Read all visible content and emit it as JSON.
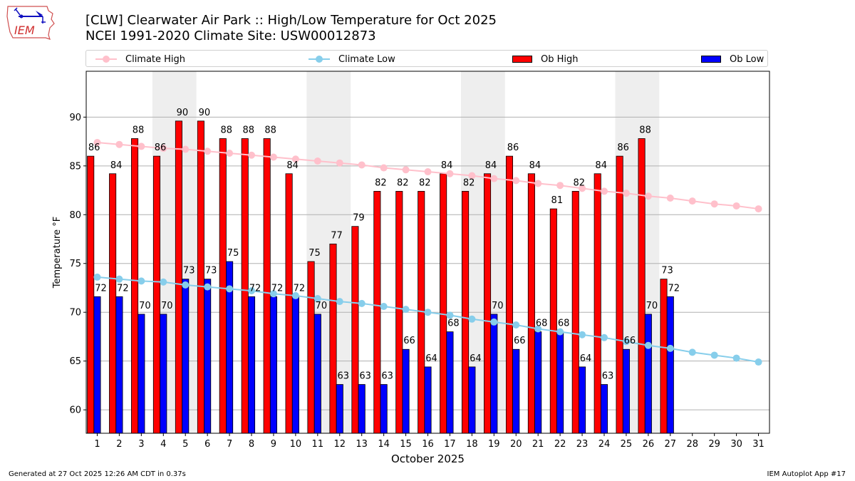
{
  "header": {
    "logo_text": "IEM",
    "title_line1": "[CLW] Clearwater Air Park :: High/Low Temperature for Oct 2025",
    "title_line2": "NCEI 1991-2020 Climate Site: USW00012873"
  },
  "legend": {
    "placement": "top (above plot, horizontal)",
    "items": [
      {
        "label": "Climate High",
        "kind": "line-marker",
        "color": "#ffc0cb"
      },
      {
        "label": "Climate Low",
        "kind": "line-marker",
        "color": "#87ceeb"
      },
      {
        "label": "Ob High",
        "kind": "bar",
        "color": "#ff0000"
      },
      {
        "label": "Ob Low",
        "kind": "bar",
        "color": "#0000ff"
      }
    ]
  },
  "footer": {
    "generated": "Generated at 27 Oct 2025 12:26 AM CDT in 0.37s",
    "app": "IEM Autoplot App #17"
  },
  "chart_data": {
    "type": "bar",
    "title": "[CLW] Clearwater Air Park :: High/Low Temperature for Oct 2025",
    "subtitle": "NCEI 1991-2020 Climate Site: USW00012873",
    "xlabel": "October 2025",
    "ylabel": "Temperature °F",
    "xlim": [
      0.5,
      31.5
    ],
    "ylim": [
      57.6,
      94.7
    ],
    "yticks": [
      60,
      65,
      70,
      75,
      80,
      85,
      90
    ],
    "xticks": [
      1,
      2,
      3,
      4,
      5,
      6,
      7,
      8,
      9,
      10,
      11,
      12,
      13,
      14,
      15,
      16,
      17,
      18,
      19,
      20,
      21,
      22,
      23,
      24,
      25,
      26,
      27,
      28,
      29,
      30,
      31
    ],
    "grid": "y",
    "weekend_shading": [
      [
        4,
        5
      ],
      [
        11,
        12
      ],
      [
        18,
        19
      ],
      [
        25,
        26
      ]
    ],
    "colors": {
      "ob_high": "#ff0000",
      "ob_low": "#0000ff",
      "climate_high": "#ffc0cb",
      "climate_low": "#87ceeb",
      "weekend": "#eeeeee",
      "grid": "#b0b0b0"
    },
    "series": [
      {
        "name": "Ob High",
        "kind": "bar",
        "days": [
          1,
          2,
          3,
          4,
          5,
          6,
          7,
          8,
          9,
          10,
          11,
          12,
          13,
          14,
          15,
          16,
          17,
          18,
          19,
          20,
          21,
          22,
          23,
          24,
          25,
          26,
          27
        ],
        "values": [
          86.0,
          84.2,
          87.8,
          86.0,
          89.6,
          89.6,
          87.8,
          87.8,
          87.8,
          84.2,
          75.2,
          77.0,
          78.8,
          82.4,
          82.4,
          82.4,
          84.2,
          82.4,
          84.2,
          86.0,
          84.2,
          80.6,
          82.4,
          84.2,
          86.0,
          87.8,
          73.4
        ],
        "labels": [
          86,
          84,
          88,
          86,
          90,
          90,
          88,
          88,
          88,
          84,
          75,
          77,
          79,
          82,
          82,
          82,
          84,
          82,
          84,
          86,
          84,
          81,
          82,
          84,
          86,
          88,
          73
        ]
      },
      {
        "name": "Ob Low",
        "kind": "bar",
        "days": [
          1,
          2,
          3,
          4,
          5,
          6,
          7,
          8,
          9,
          10,
          11,
          12,
          13,
          14,
          15,
          16,
          17,
          18,
          19,
          20,
          21,
          22,
          23,
          24,
          25,
          26,
          27
        ],
        "values": [
          71.6,
          71.6,
          69.8,
          69.8,
          73.4,
          73.4,
          75.2,
          71.6,
          71.6,
          71.6,
          69.8,
          62.6,
          62.6,
          62.6,
          66.2,
          64.4,
          68.0,
          64.4,
          69.8,
          66.2,
          68.0,
          68.0,
          64.4,
          62.6,
          66.2,
          69.8,
          71.6
        ],
        "labels": [
          72,
          72,
          70,
          70,
          73,
          73,
          75,
          72,
          72,
          72,
          70,
          63,
          63,
          63,
          66,
          64,
          68,
          64,
          70,
          66,
          68,
          68,
          64,
          63,
          66,
          70,
          72
        ]
      },
      {
        "name": "Climate High",
        "kind": "line",
        "days": [
          1,
          2,
          3,
          4,
          5,
          6,
          7,
          8,
          9,
          10,
          11,
          12,
          13,
          14,
          15,
          16,
          17,
          18,
          19,
          20,
          21,
          22,
          23,
          24,
          25,
          26,
          27,
          28,
          29,
          30,
          31
        ],
        "values": [
          87.4,
          87.2,
          87.0,
          86.8,
          86.7,
          86.5,
          86.3,
          86.1,
          85.9,
          85.7,
          85.5,
          85.3,
          85.1,
          84.8,
          84.6,
          84.4,
          84.2,
          84.0,
          83.7,
          83.5,
          83.2,
          83.0,
          82.7,
          82.4,
          82.2,
          81.9,
          81.7,
          81.4,
          81.1,
          80.9,
          80.6
        ]
      },
      {
        "name": "Climate Low",
        "kind": "line",
        "days": [
          1,
          2,
          3,
          4,
          5,
          6,
          7,
          8,
          9,
          10,
          11,
          12,
          13,
          14,
          15,
          16,
          17,
          18,
          19,
          20,
          21,
          22,
          23,
          24,
          25,
          26,
          27,
          28,
          29,
          30,
          31
        ],
        "values": [
          73.6,
          73.4,
          73.2,
          73.1,
          72.8,
          72.6,
          72.4,
          72.2,
          71.9,
          71.7,
          71.4,
          71.1,
          70.9,
          70.6,
          70.3,
          70.0,
          69.7,
          69.3,
          69.0,
          68.7,
          68.3,
          68.0,
          67.7,
          67.4,
          67.0,
          66.6,
          66.3,
          65.9,
          65.6,
          65.3,
          64.9
        ]
      }
    ]
  }
}
